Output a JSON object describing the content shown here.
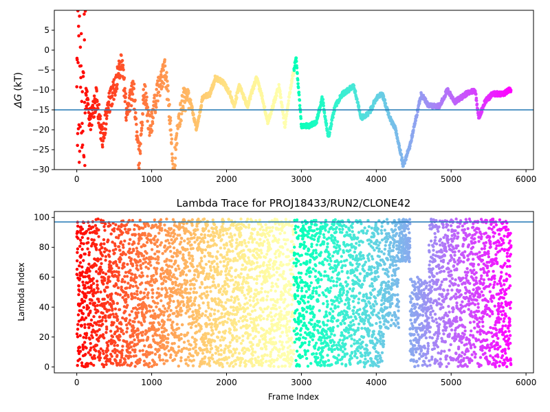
{
  "chart_data": [
    {
      "type": "scatter",
      "title": "",
      "xlabel": "",
      "ylabel": "ΔG (kT)",
      "ylabel_symbol": "ΔG",
      "ylabel_unit": "(kT)",
      "xlim": [
        -300,
        6100
      ],
      "ylim": [
        -30,
        10
      ],
      "xticks": [
        0,
        1000,
        2000,
        3000,
        4000,
        5000,
        6000
      ],
      "yticks": [
        -30,
        -25,
        -20,
        -15,
        -10,
        -5,
        0,
        5
      ],
      "hline": -15,
      "colormap": "rainbow",
      "x_max_frame": 5800,
      "trace_knots": [
        [
          0,
          5
        ],
        [
          60,
          -20
        ],
        [
          120,
          -10
        ],
        [
          180,
          -18
        ],
        [
          260,
          -12
        ],
        [
          340,
          -22
        ],
        [
          420,
          -14
        ],
        [
          520,
          -8
        ],
        [
          600,
          -2
        ],
        [
          660,
          -15
        ],
        [
          760,
          -10
        ],
        [
          830,
          -28
        ],
        [
          900,
          -10
        ],
        [
          980,
          -20
        ],
        [
          1080,
          -10
        ],
        [
          1180,
          -5
        ],
        [
          1230,
          -14
        ],
        [
          1290,
          -30
        ],
        [
          1350,
          -20
        ],
        [
          1420,
          -12
        ],
        [
          1520,
          -13
        ],
        [
          1600,
          -20
        ],
        [
          1680,
          -12
        ],
        [
          1780,
          -11
        ],
        [
          1850,
          -7
        ],
        [
          1950,
          -8
        ],
        [
          2050,
          -11
        ],
        [
          2100,
          -14
        ],
        [
          2170,
          -9
        ],
        [
          2280,
          -14
        ],
        [
          2400,
          -7
        ],
        [
          2480,
          -12
        ],
        [
          2550,
          -18
        ],
        [
          2620,
          -14
        ],
        [
          2700,
          -9
        ],
        [
          2780,
          -19
        ],
        [
          2850,
          -10
        ],
        [
          2930,
          -2
        ],
        [
          3000,
          -19
        ],
        [
          3100,
          -19
        ],
        [
          3200,
          -18
        ],
        [
          3280,
          -12
        ],
        [
          3360,
          -22
        ],
        [
          3450,
          -14
        ],
        [
          3550,
          -11
        ],
        [
          3700,
          -9
        ],
        [
          3800,
          -17
        ],
        [
          3900,
          -16
        ],
        [
          4000,
          -12
        ],
        [
          4080,
          -11
        ],
        [
          4180,
          -17
        ],
        [
          4260,
          -20
        ],
        [
          4360,
          -29
        ],
        [
          4450,
          -24
        ],
        [
          4520,
          -18
        ],
        [
          4600,
          -11
        ],
        [
          4700,
          -14
        ],
        [
          4850,
          -14
        ],
        [
          4950,
          -10
        ],
        [
          5050,
          -13
        ],
        [
          5200,
          -11
        ],
        [
          5320,
          -10
        ],
        [
          5370,
          -17
        ],
        [
          5450,
          -13
        ],
        [
          5550,
          -11
        ],
        [
          5700,
          -11
        ],
        [
          5780,
          -10
        ]
      ]
    },
    {
      "type": "scatter",
      "title": "Lambda Trace for PROJ18433/RUN2/CLONE42",
      "xlabel": "Frame Index",
      "ylabel": "Lambda Index",
      "xlim": [
        -300,
        6100
      ],
      "ylim": [
        -4,
        104
      ],
      "xticks": [
        0,
        1000,
        2000,
        3000,
        4000,
        5000,
        6000
      ],
      "yticks": [
        0,
        20,
        40,
        60,
        80,
        100
      ],
      "hline": 97,
      "colormap": "rainbow",
      "x_max_frame": 5800,
      "swing_bands": [
        [
          0,
          0,
          99
        ],
        [
          200,
          0,
          99
        ],
        [
          600,
          0,
          99
        ],
        [
          1000,
          0,
          99
        ],
        [
          1500,
          0,
          99
        ],
        [
          2000,
          0,
          99
        ],
        [
          2400,
          0,
          99
        ],
        [
          2700,
          0,
          99
        ],
        [
          3000,
          0,
          99
        ],
        [
          3300,
          0,
          99
        ],
        [
          3550,
          0,
          99
        ],
        [
          3800,
          0,
          99
        ],
        [
          4100,
          25,
          99
        ],
        [
          4300,
          70,
          99
        ],
        [
          4450,
          0,
          60
        ],
        [
          4700,
          0,
          99
        ],
        [
          5000,
          0,
          99
        ],
        [
          5300,
          0,
          99
        ],
        [
          5600,
          0,
          99
        ],
        [
          5800,
          0,
          99
        ]
      ]
    }
  ]
}
